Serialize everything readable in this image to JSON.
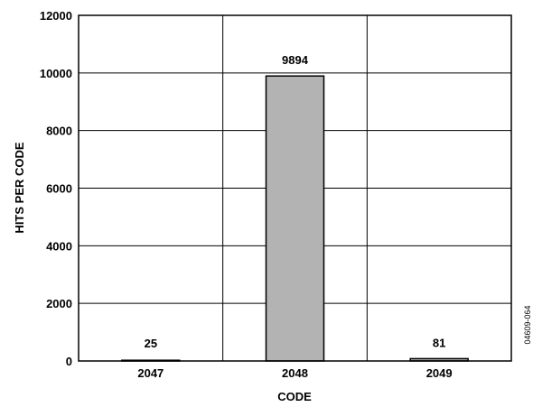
{
  "chart_data": {
    "type": "bar",
    "title": "",
    "xlabel": "CODE",
    "ylabel": "HITS PER CODE",
    "categories": [
      "2047",
      "2048",
      "2049"
    ],
    "values": [
      25,
      9894,
      81
    ],
    "data_labels": [
      "25",
      "9894",
      "81"
    ],
    "ylim": [
      0,
      12000
    ],
    "yticks": [
      0,
      2000,
      4000,
      6000,
      8000,
      10000,
      12000
    ],
    "grid": true,
    "legend": "none",
    "bar_color": "#b3b3b3",
    "bar_edge_color": "#000000"
  },
  "figure_id": "04609-064"
}
